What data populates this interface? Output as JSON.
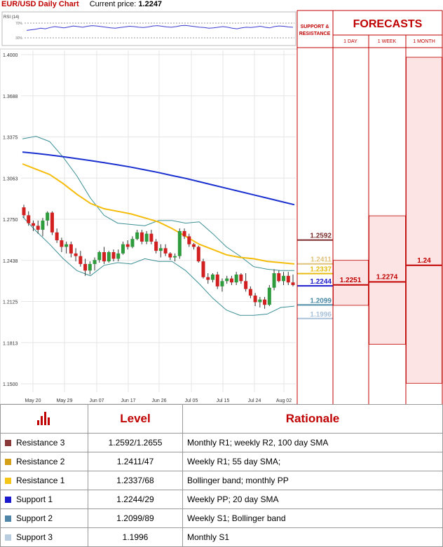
{
  "header": {
    "pair_title": "EUR/USD Daily Chart",
    "current_label": "Current price:",
    "current_value": "1.2247"
  },
  "rsi": {
    "label": "RSI (14)",
    "levels": [
      "70%",
      "30%"
    ],
    "values": [
      48,
      50,
      52,
      55,
      53,
      57,
      60,
      58,
      56,
      59,
      62,
      60,
      58,
      61,
      63,
      62,
      60,
      58,
      56,
      55,
      57,
      59,
      61,
      60,
      58,
      57,
      59,
      62,
      63,
      61,
      59,
      58,
      60,
      63,
      64,
      62,
      60,
      58,
      57,
      55,
      56,
      58,
      60,
      58,
      55,
      53,
      56,
      58,
      57,
      59,
      61,
      58,
      56,
      60,
      62,
      61,
      59,
      58
    ]
  },
  "chart_data": {
    "type": "candlestick",
    "title": "EUR/USD Daily Chart",
    "y_ticks": [
      "1.4000",
      "1.3688",
      "1.3375",
      "1.3063",
      "1.2750",
      "1.2438",
      "1.2125",
      "1.1813",
      "1.1500"
    ],
    "ylim": [
      1.15,
      1.4
    ],
    "x_labels": [
      "May 20",
      "May 29",
      "Jun 07",
      "Jun 17",
      "Jun 26",
      "Jul 05",
      "Jul 15",
      "Jul 24",
      "Aug 02"
    ],
    "candles": [
      [
        1.284,
        1.286,
        1.276,
        1.278
      ],
      [
        1.278,
        1.281,
        1.27,
        1.272
      ],
      [
        1.272,
        1.274,
        1.266,
        1.27
      ],
      [
        1.27,
        1.274,
        1.264,
        1.267
      ],
      [
        1.267,
        1.276,
        1.262,
        1.274
      ],
      [
        1.274,
        1.281,
        1.27,
        1.28
      ],
      [
        1.28,
        1.281,
        1.263,
        1.265
      ],
      [
        1.265,
        1.268,
        1.257,
        1.259
      ],
      [
        1.259,
        1.261,
        1.25,
        1.254
      ],
      [
        1.254,
        1.258,
        1.249,
        1.256
      ],
      [
        1.256,
        1.258,
        1.246,
        1.249
      ],
      [
        1.249,
        1.253,
        1.243,
        1.247
      ],
      [
        1.247,
        1.251,
        1.239,
        1.241
      ],
      [
        1.241,
        1.245,
        1.232,
        1.236
      ],
      [
        1.236,
        1.243,
        1.233,
        1.241
      ],
      [
        1.241,
        1.246,
        1.236,
        1.244
      ],
      [
        1.244,
        1.251,
        1.242,
        1.25
      ],
      [
        1.25,
        1.254,
        1.241,
        1.243
      ],
      [
        1.243,
        1.251,
        1.242,
        1.25
      ],
      [
        1.25,
        1.252,
        1.243,
        1.245
      ],
      [
        1.245,
        1.252,
        1.243,
        1.249
      ],
      [
        1.249,
        1.258,
        1.248,
        1.256
      ],
      [
        1.256,
        1.259,
        1.252,
        1.254
      ],
      [
        1.254,
        1.262,
        1.253,
        1.26
      ],
      [
        1.26,
        1.267,
        1.259,
        1.265
      ],
      [
        1.265,
        1.267,
        1.256,
        1.258
      ],
      [
        1.258,
        1.266,
        1.256,
        1.264
      ],
      [
        1.264,
        1.267,
        1.256,
        1.258
      ],
      [
        1.258,
        1.26,
        1.249,
        1.251
      ],
      [
        1.251,
        1.256,
        1.246,
        1.253
      ],
      [
        1.253,
        1.256,
        1.247,
        1.249
      ],
      [
        1.249,
        1.25,
        1.244,
        1.246
      ],
      [
        1.246,
        1.249,
        1.243,
        1.247
      ],
      [
        1.247,
        1.268,
        1.245,
        1.266
      ],
      [
        1.266,
        1.268,
        1.26,
        1.262
      ],
      [
        1.262,
        1.264,
        1.254,
        1.256
      ],
      [
        1.256,
        1.257,
        1.252,
        1.254
      ],
      [
        1.254,
        1.255,
        1.242,
        1.243
      ],
      [
        1.243,
        1.245,
        1.23,
        1.231
      ],
      [
        1.231,
        1.234,
        1.226,
        1.229
      ],
      [
        1.229,
        1.234,
        1.227,
        1.233
      ],
      [
        1.233,
        1.235,
        1.222,
        1.224
      ],
      [
        1.224,
        1.23,
        1.22,
        1.228
      ],
      [
        1.228,
        1.232,
        1.226,
        1.23
      ],
      [
        1.23,
        1.232,
        1.225,
        1.227
      ],
      [
        1.227,
        1.235,
        1.225,
        1.233
      ],
      [
        1.233,
        1.234,
        1.226,
        1.228
      ],
      [
        1.228,
        1.234,
        1.22,
        1.222
      ],
      [
        1.222,
        1.224,
        1.215,
        1.217
      ],
      [
        1.217,
        1.219,
        1.209,
        1.212
      ],
      [
        1.212,
        1.216,
        1.208,
        1.214
      ],
      [
        1.214,
        1.216,
        1.207,
        1.21
      ],
      [
        1.21,
        1.225,
        1.209,
        1.223
      ],
      [
        1.223,
        1.237,
        1.221,
        1.234
      ],
      [
        1.234,
        1.236,
        1.227,
        1.228
      ],
      [
        1.228,
        1.235,
        1.225,
        1.232
      ],
      [
        1.232,
        1.235,
        1.225,
        1.227
      ],
      [
        1.227,
        1.233,
        1.224,
        1.225
      ]
    ],
    "sma100": [
      1.326,
      1.325,
      1.3238,
      1.3225,
      1.321,
      1.3195,
      1.318,
      1.3163,
      1.3145,
      1.3125,
      1.3105,
      1.3082,
      1.306,
      1.3035,
      1.301,
      1.2985,
      1.296,
      1.2935,
      1.291,
      1.2885,
      1.286
    ],
    "sma55": [
      1.317,
      1.313,
      1.309,
      1.302,
      1.294,
      1.287,
      1.283,
      1.281,
      1.279,
      1.276,
      1.273,
      1.268,
      1.262,
      1.256,
      1.252,
      1.248,
      1.246,
      1.245,
      1.243,
      1.242,
      1.241
    ],
    "bb_upper": [
      1.336,
      1.338,
      1.334,
      1.322,
      1.308,
      1.291,
      1.278,
      1.272,
      1.271,
      1.27,
      1.274,
      1.274,
      1.272,
      1.273,
      1.264,
      1.254,
      1.247,
      1.239,
      1.237,
      1.236,
      1.236
    ],
    "bb_lower": [
      1.277,
      1.266,
      1.256,
      1.245,
      1.236,
      1.232,
      1.24,
      1.242,
      1.241,
      1.245,
      1.243,
      1.243,
      1.236,
      1.226,
      1.215,
      1.206,
      1.202,
      1.202,
      1.203,
      1.208,
      1.209
    ],
    "levels": [
      {
        "label": "1.2592",
        "value": 1.2592,
        "color": "#7b2c2c"
      },
      {
        "label": "1.2411",
        "value": 1.2411,
        "color": "#e0c27a"
      },
      {
        "label": "1.2337",
        "value": 1.2337,
        "color": "#e8bd10"
      },
      {
        "label": "1.2244",
        "value": 1.2244,
        "color": "#1c1ccc"
      },
      {
        "label": "1.2099",
        "value": 1.2099,
        "color": "#4a8aa5"
      },
      {
        "label": "1.1996",
        "value": 1.1996,
        "color": "#a9c2d9"
      }
    ],
    "sr_header": "SUPPORT & RESISTANCE",
    "forecasts": {
      "title": "FORECASTS",
      "columns": [
        {
          "label": "1 DAY",
          "value": "1.2251",
          "low": 1.2096,
          "high": 1.2438,
          "center": 1.2251
        },
        {
          "label": "1 WEEK",
          "value": "1.2274",
          "low": 1.18,
          "high": 1.2776,
          "center": 1.2274
        },
        {
          "label": "1 MONTH",
          "value": "1.24",
          "low": 1.1504,
          "high": 1.398,
          "center": 1.24
        }
      ]
    },
    "colors": {
      "bull": "#2e9b3d",
      "bear": "#d21f1f",
      "sma100": "#1a2fd0",
      "sma55": "#f5bc0a",
      "bands": "#3a8f95",
      "accent": "#c00000"
    }
  },
  "table": {
    "headers": {
      "level": "Level",
      "rationale": "Rationale"
    },
    "rows": [
      {
        "name": "Resistance 3",
        "level": "1.2592/1.2655",
        "rationale": "Monthly R1; weekly R2, 100 day SMA",
        "color": "#8b3a3a"
      },
      {
        "name": "Resistance 2",
        "level": "1.2411/47",
        "rationale": "Weekly R1; 55 day SMA;",
        "color": "#d4a017"
      },
      {
        "name": "Resistance 1",
        "level": "1.2337/68",
        "rationale": "Bollinger band; monthly PP",
        "color": "#f5c518"
      },
      {
        "name": "Support 1",
        "level": "1.2244/29",
        "rationale": "Weekly PP; 20 day SMA",
        "color": "#1a1acc"
      },
      {
        "name": "Support 2",
        "level": "1.2099/89",
        "rationale": "Weekly S1; Bollinger band",
        "color": "#4f86a8"
      },
      {
        "name": "Support 3",
        "level": "1.1996",
        "rationale": "Monthly S1",
        "color": "#b8cde0"
      }
    ]
  }
}
